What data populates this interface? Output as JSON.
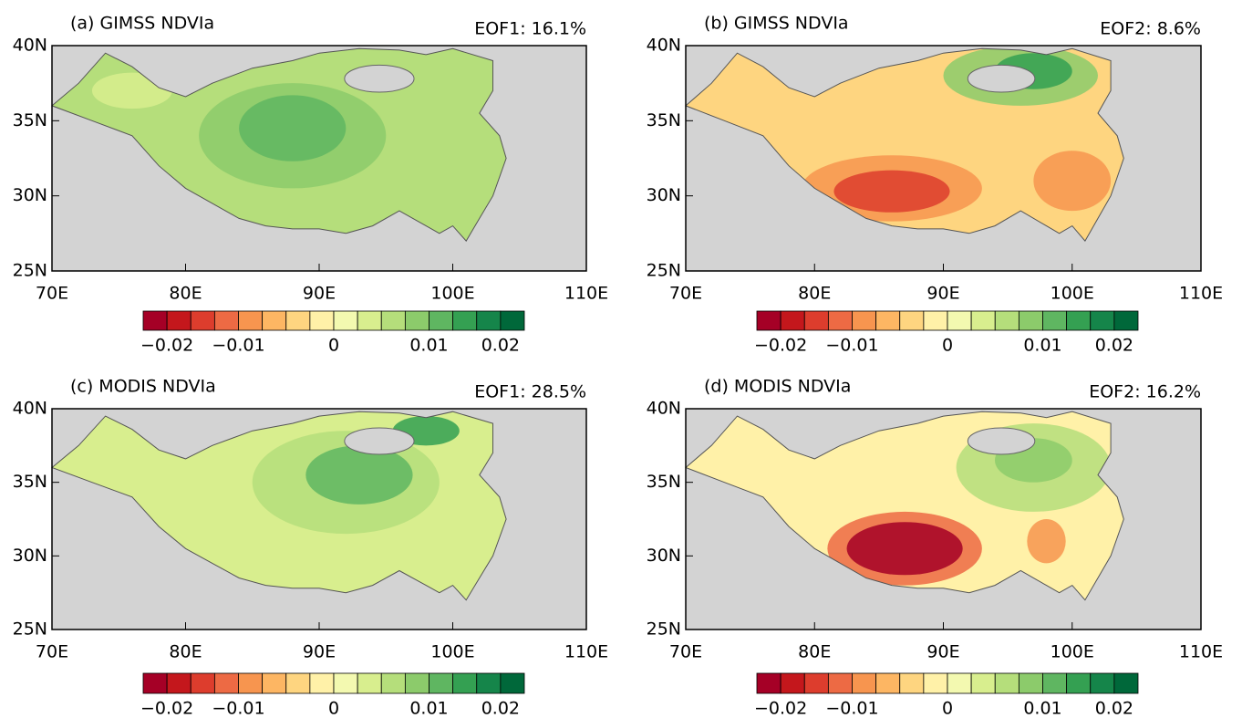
{
  "palette": [
    "#a50026",
    "#c4171c",
    "#dd3d2d",
    "#ed6a44",
    "#f7954f",
    "#fdb663",
    "#fed580",
    "#fff1a8",
    "#f3f9b0",
    "#d8ee8e",
    "#b5de7b",
    "#8ccb6b",
    "#5fb661",
    "#34a052",
    "#15854a",
    "#00683a"
  ],
  "panels": [
    {
      "title": "(a) GIMSS NDVIa",
      "eof": "EOF1: 16.1%",
      "xlim": [
        70,
        110
      ],
      "ylim": [
        25,
        40
      ],
      "xticks": [
        {
          "value": 70,
          "label": "70E"
        },
        {
          "value": 80,
          "label": "80E"
        },
        {
          "value": 90,
          "label": "90E"
        },
        {
          "value": 100,
          "label": "100E"
        },
        {
          "value": 110,
          "label": "110E"
        }
      ],
      "yticks": [
        {
          "value": 25,
          "label": "25N"
        },
        {
          "value": 30,
          "label": "30N"
        },
        {
          "value": 35,
          "label": "35N"
        },
        {
          "value": 40,
          "label": "40N"
        }
      ],
      "colorbar_labels": [
        "−0.02",
        "−0.01",
        "0",
        "0.01",
        "0.02"
      ]
    },
    {
      "title": "(b) GIMSS NDVIa",
      "eof": "EOF2:  8.6%",
      "xlim": [
        70,
        110
      ],
      "ylim": [
        25,
        40
      ],
      "xticks": [
        {
          "value": 70,
          "label": "70E"
        },
        {
          "value": 80,
          "label": "80E"
        },
        {
          "value": 90,
          "label": "90E"
        },
        {
          "value": 100,
          "label": "100E"
        },
        {
          "value": 110,
          "label": "110E"
        }
      ],
      "yticks": [
        {
          "value": 25,
          "label": "25N"
        },
        {
          "value": 30,
          "label": "30N"
        },
        {
          "value": 35,
          "label": "35N"
        },
        {
          "value": 40,
          "label": "40N"
        }
      ],
      "colorbar_labels": [
        "−0.02",
        "−0.01",
        "0",
        "0.01",
        "0.02"
      ]
    },
    {
      "title": "(c) MODIS NDVIa",
      "eof": "EOF1: 28.5%",
      "xlim": [
        70,
        110
      ],
      "ylim": [
        25,
        40
      ],
      "xticks": [
        {
          "value": 70,
          "label": "70E"
        },
        {
          "value": 80,
          "label": "80E"
        },
        {
          "value": 90,
          "label": "90E"
        },
        {
          "value": 100,
          "label": "100E"
        },
        {
          "value": 110,
          "label": "110E"
        }
      ],
      "yticks": [
        {
          "value": 25,
          "label": "25N"
        },
        {
          "value": 30,
          "label": "30N"
        },
        {
          "value": 35,
          "label": "35N"
        },
        {
          "value": 40,
          "label": "40N"
        }
      ],
      "colorbar_labels": [
        "−0.02",
        "−0.01",
        "0",
        "0.01",
        "0.02"
      ]
    },
    {
      "title": "(d) MODIS NDVIa",
      "eof": "EOF2: 16.2%",
      "xlim": [
        70,
        110
      ],
      "ylim": [
        25,
        40
      ],
      "xticks": [
        {
          "value": 70,
          "label": "70E"
        },
        {
          "value": 80,
          "label": "80E"
        },
        {
          "value": 90,
          "label": "90E"
        },
        {
          "value": 100,
          "label": "100E"
        },
        {
          "value": 110,
          "label": "110E"
        }
      ],
      "yticks": [
        {
          "value": 25,
          "label": "25N"
        },
        {
          "value": 30,
          "label": "30N"
        },
        {
          "value": 35,
          "label": "35N"
        },
        {
          "value": 40,
          "label": "40N"
        }
      ],
      "colorbar_labels": [
        "−0.02",
        "−0.01",
        "0",
        "0.01",
        "0.02"
      ]
    }
  ]
}
